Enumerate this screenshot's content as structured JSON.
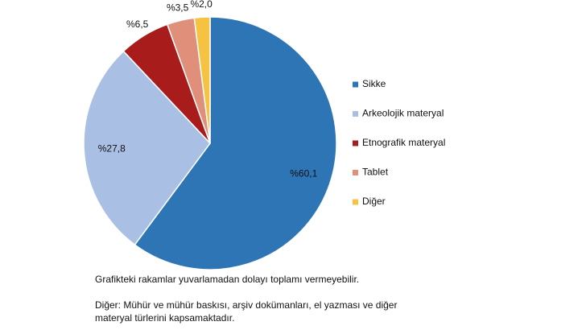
{
  "chart_data": {
    "type": "pie",
    "categories": [
      "Sikke",
      "Arkeolojik materyal",
      "Etnografik materyal",
      "Tablet",
      "Diğer"
    ],
    "values": [
      60.1,
      27.8,
      6.5,
      3.5,
      2.0
    ],
    "value_labels": [
      "%60,1",
      "%27,8",
      "%6,5",
      "%3,5",
      "%2,0"
    ],
    "colors": [
      "#2e75b6",
      "#a9c0e4",
      "#a81c1c",
      "#e0907a",
      "#f5c242"
    ],
    "legend": "right",
    "notes": [
      "Grafikteki rakamlar yuvarlamadan dolayı toplamı vermeyebilir.",
      "Diğer: Mühür ve mühür baskısı, arşiv dokümanları, el yazması ve diğer",
      "materyal türlerini kapsamaktadır."
    ]
  }
}
